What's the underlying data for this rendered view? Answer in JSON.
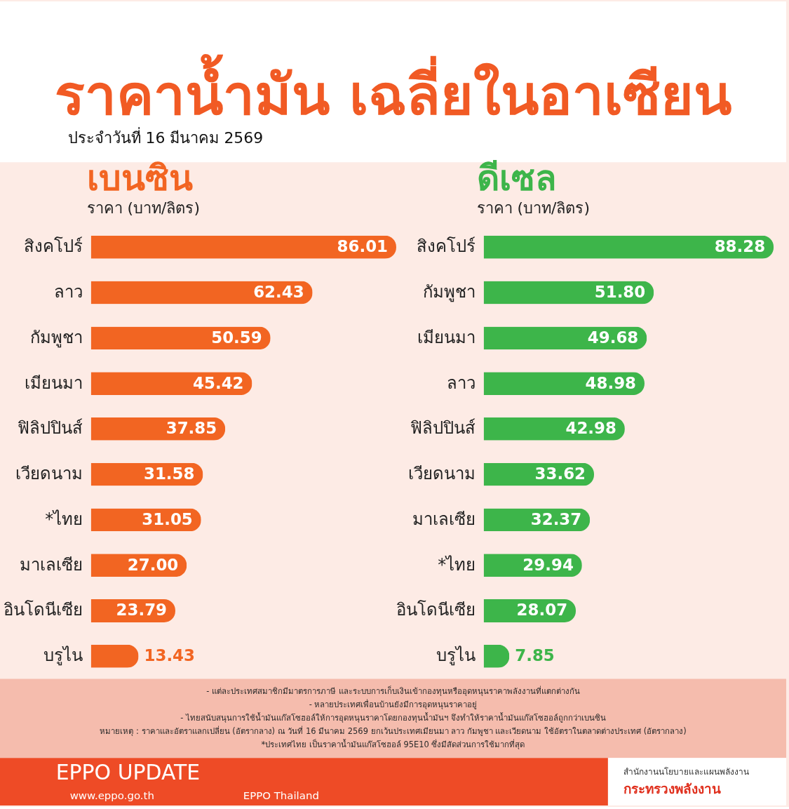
{
  "chart_data": [
    {
      "type": "other",
      "title": "ราคาน้ำมัน เฉลี่ยในอาเซียน",
      "subtitle": "ประจำวันที่ 16 มีนาคม 2569"
    },
    {
      "type": "bar",
      "orientation": "horizontal",
      "title": "เบนซิน",
      "subtitle": "ราคา (บาท/ลิตร)",
      "categories": [
        "สิงคโปร์",
        "ลาว",
        "กัมพูชา",
        "เมียนมา",
        "ฟิลิปปินส์",
        "เวียดนาม",
        "*ไทย",
        "มาเลเซีย",
        "อินโดนีเซีย",
        "บรูไน"
      ],
      "values": [
        86.01,
        62.43,
        50.59,
        45.42,
        37.85,
        31.58,
        31.05,
        27.0,
        23.79,
        13.43
      ],
      "value_labels": [
        "86.01",
        "62.43",
        "50.59",
        "45.42",
        "37.85",
        "31.58",
        "31.05",
        "27.00",
        "23.79",
        "13.43"
      ],
      "color": "#f26522",
      "tick_labels": "y"
    },
    {
      "type": "bar",
      "orientation": "horizontal",
      "title": "ดีเซล",
      "subtitle": "ราคา (บาท/ลิตร)",
      "categories": [
        "สิงคโปร์",
        "กัมพูชา",
        "เมียนมา",
        "ลาว",
        "ฟิลิปปินส์",
        "เวียดนาม",
        "มาเลเซีย",
        "*ไทย",
        "อินโดนีเซีย",
        "บรูไน"
      ],
      "values": [
        88.28,
        51.8,
        49.68,
        48.98,
        42.98,
        33.62,
        32.37,
        29.94,
        28.07,
        7.85
      ],
      "value_labels": [
        "88.28",
        "51.80",
        "49.68",
        "48.98",
        "42.98",
        "33.62",
        "32.37",
        "29.94",
        "28.07",
        "7.85"
      ],
      "color": "#3db54a",
      "tick_labels": "y"
    },
    {
      "type": "other",
      "annotations": [
        "- แต่ละประเทศสมาชิกมีมาตรการภาษี และระบบการเก็บเงินเข้ากองทุนหรืออุดหนุนราคาพลังงานที่แตกต่างกัน",
        "- หลายประเทศเพื่อนบ้านยังมีการอุดหนุนราคาอยู่",
        "- ไทยสนับสนุนการใช้น้ำมันแก๊สโซฮอล์ให้การอุดหนุนราคาโดยกองทุนน้ำมันฯ จึงทำให้ราคาน้ำมันแก๊สโซฮอล์ถูกกว่าเบนซิน",
        "หมายเหตุ : ราคาและอัตราแลกเปลี่ยน (อัตรากลาง) ณ วันที่ 16 มีนาคม 2569 ยกเว้นประเทศเมียนมา ลาว กัมพูชา และเวียดนาม ใช้อัตราในตลาดต่างประเทศ (อัตรากลาง)",
        "*ประเทศไทย เป็นราคาน้ำมันแก๊สโซฮอล์ 95E10 ซึ่งมีสัดส่วนการใช้มากที่สุด"
      ]
    },
    {
      "type": "other",
      "annotations": [
        "EPPO UPDATE",
        "www.eppo.go.th",
        "EPPO Thailand",
        "สำนักงานนโยบายและแผนพลังงาน",
        "กระทรวงพลังงาน"
      ]
    }
  ]
}
